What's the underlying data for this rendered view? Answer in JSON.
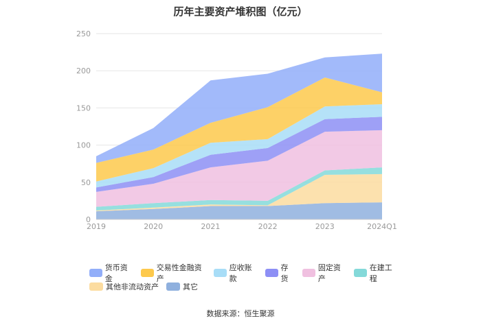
{
  "title": "历年主要资产堆积图（亿元）",
  "source": "数据来源：恒生聚源",
  "chart_data": {
    "type": "area",
    "stacked": true,
    "x": [
      "2019",
      "2020",
      "2021",
      "2022",
      "2023",
      "2024Q1"
    ],
    "y_ticks": [
      "0",
      "50",
      "100",
      "150",
      "200",
      "250"
    ],
    "ylim": [
      0,
      250
    ],
    "grid": true,
    "legend_position": "bottom",
    "series": [
      {
        "name": "其它",
        "color": "#8fb0de",
        "values": [
          11,
          14,
          18,
          18,
          22,
          23
        ]
      },
      {
        "name": "其他非流动资产",
        "color": "#fcdca0",
        "values": [
          1,
          2,
          2,
          1,
          38,
          38
        ]
      },
      {
        "name": "在建工程",
        "color": "#84d9d9",
        "values": [
          5,
          6,
          6,
          6,
          6,
          9
        ]
      },
      {
        "name": "固定资产",
        "color": "#f0c0e0",
        "values": [
          20,
          26,
          44,
          54,
          52,
          50
        ]
      },
      {
        "name": "存货",
        "color": "#8d8ff5",
        "values": [
          6,
          9,
          17,
          17,
          17,
          18
        ]
      },
      {
        "name": "应收账款",
        "color": "#a8ddf7",
        "values": [
          8,
          12,
          16,
          12,
          17,
          17
        ]
      },
      {
        "name": "交易性金融资产",
        "color": "#fdc94c",
        "values": [
          25,
          25,
          27,
          43,
          39,
          16
        ]
      },
      {
        "name": "货币资金",
        "color": "#92aef9",
        "values": [
          9,
          29,
          57,
          45,
          27,
          52
        ]
      }
    ]
  },
  "legend_rows": [
    [
      "货币资金",
      "交易性金融资产",
      "应收账款",
      "存货",
      "固定资产",
      "在建工程"
    ],
    [
      "其他非流动资产",
      "其它"
    ]
  ]
}
